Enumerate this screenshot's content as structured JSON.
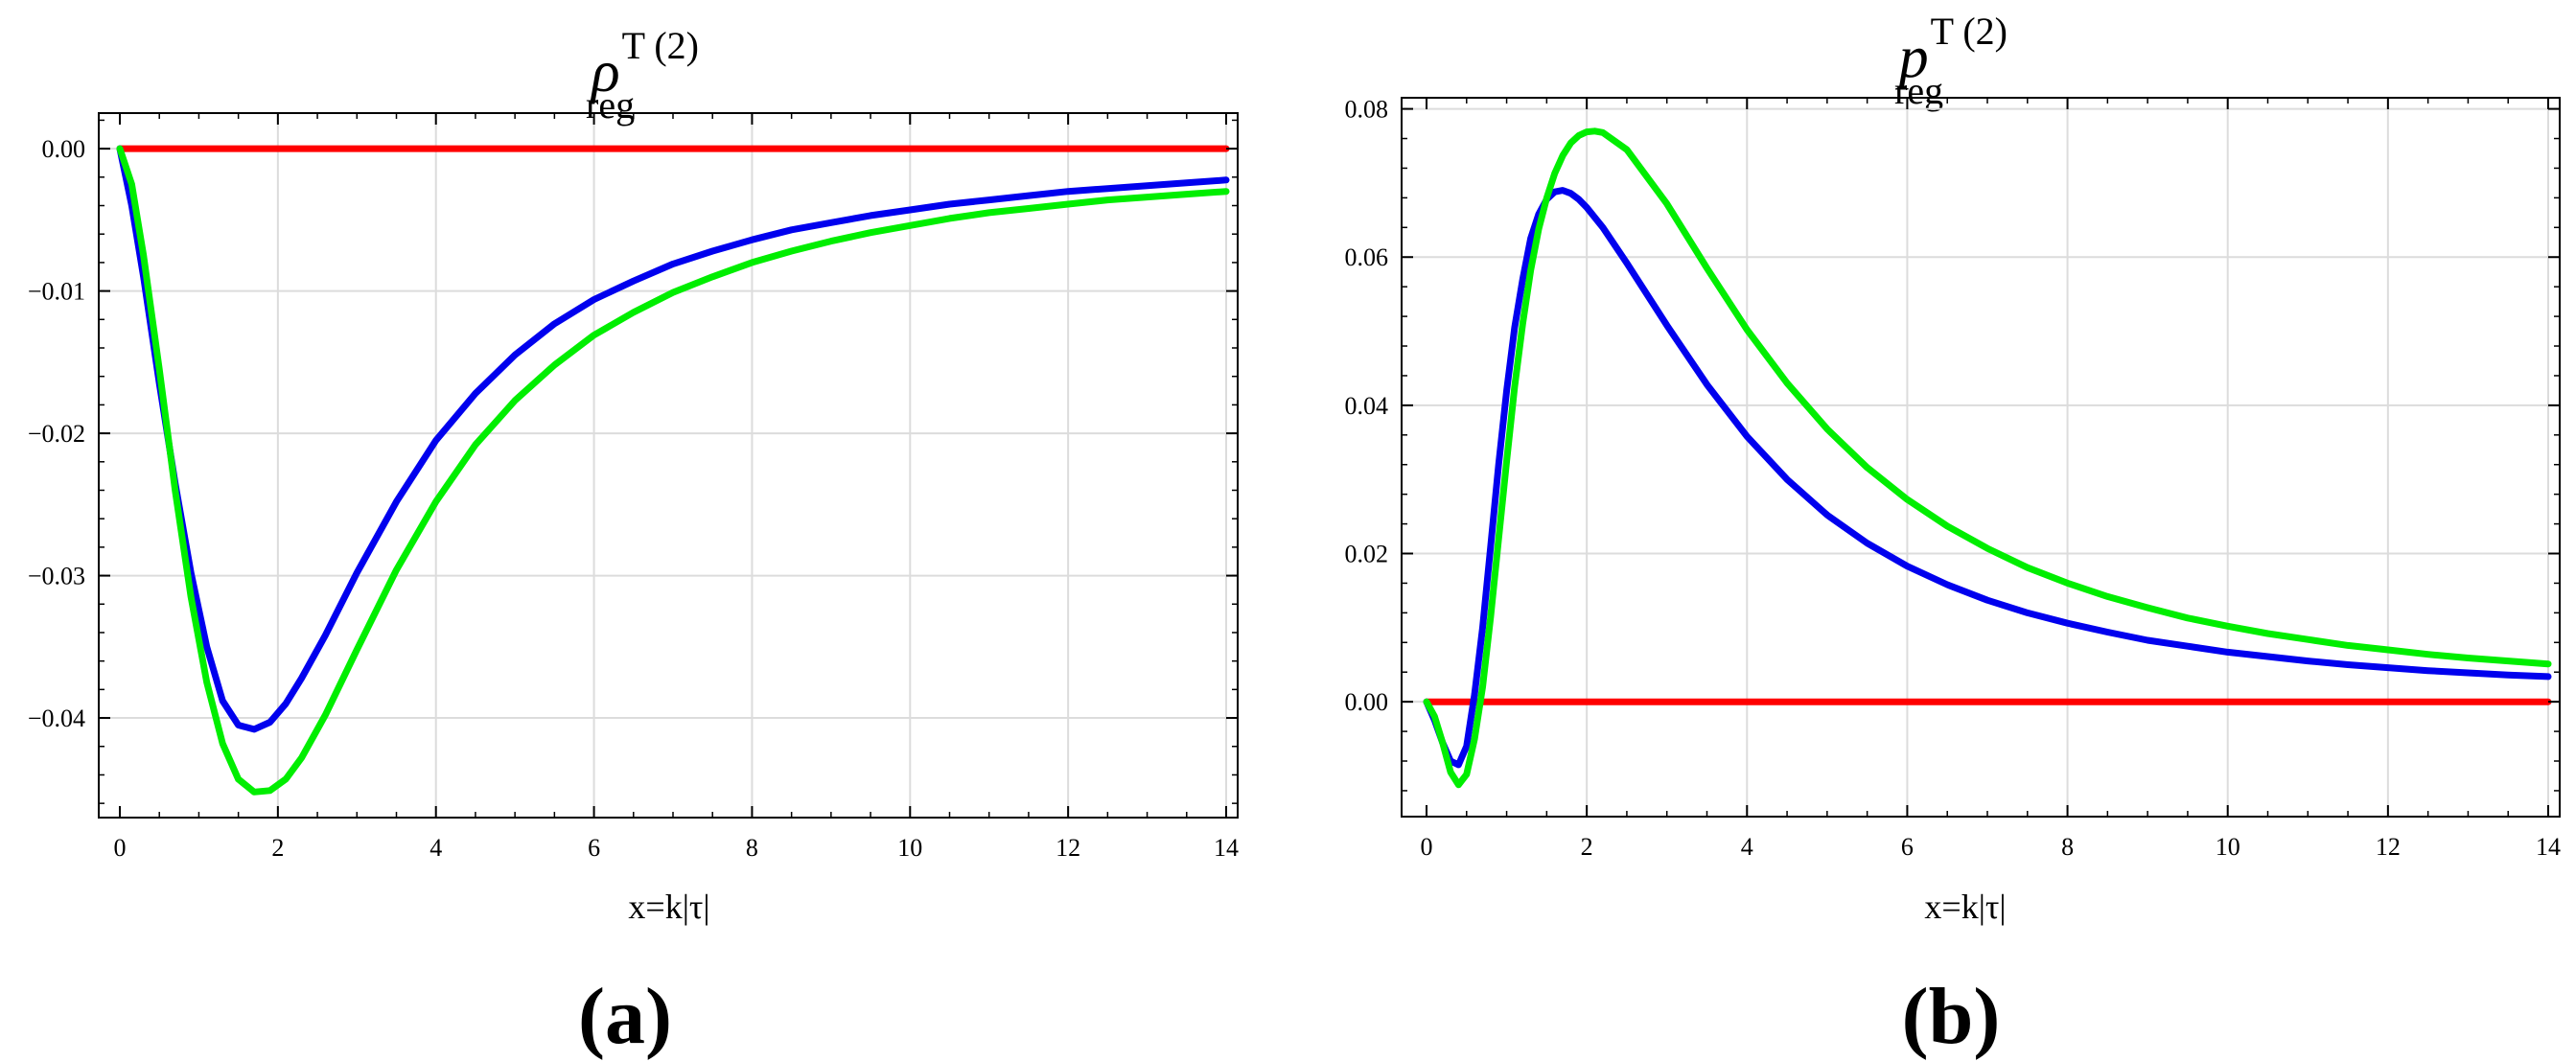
{
  "chart_data": [
    {
      "type": "line",
      "panel_label": "(a)",
      "title": {
        "symbol": "ρ",
        "sup": "T (2)",
        "sub": "reg"
      },
      "xlabel": "x=k|τ|",
      "ylabel": "",
      "xlim": [
        0,
        14
      ],
      "ylim": [
        -0.047,
        0.0025
      ],
      "grid": true,
      "legend": "none",
      "x_ticks": [
        "0",
        "2",
        "4",
        "6",
        "8",
        "10",
        "12",
        "14"
      ],
      "y_ticks": [
        "0.00",
        "−0.01",
        "−0.02",
        "−0.03",
        "−0.04"
      ],
      "series": [
        {
          "color": "#ff0000",
          "x": [
            0,
            14
          ],
          "y": [
            0,
            0
          ]
        },
        {
          "color": "#0000ee",
          "x": [
            0,
            0.15,
            0.3,
            0.5,
            0.7,
            0.9,
            1.1,
            1.3,
            1.5,
            1.7,
            1.9,
            2.1,
            2.3,
            2.6,
            3.0,
            3.5,
            4.0,
            4.5,
            5.0,
            5.5,
            6.0,
            6.5,
            7.0,
            7.5,
            8.0,
            8.5,
            9.0,
            9.5,
            10.0,
            10.5,
            11.0,
            11.5,
            12.0,
            12.5,
            13.0,
            13.5,
            14.0
          ],
          "y": [
            0,
            -0.004,
            -0.009,
            -0.0165,
            -0.0235,
            -0.0298,
            -0.035,
            -0.0388,
            -0.0405,
            -0.0408,
            -0.0403,
            -0.039,
            -0.0372,
            -0.0342,
            -0.0298,
            -0.0248,
            -0.0205,
            -0.0172,
            -0.0145,
            -0.0123,
            -0.0106,
            -0.0093,
            -0.0081,
            -0.0072,
            -0.0064,
            -0.0057,
            -0.0052,
            -0.0047,
            -0.0043,
            -0.0039,
            -0.0036,
            -0.0033,
            -0.003,
            -0.0028,
            -0.0026,
            -0.0024,
            -0.0022
          ]
        },
        {
          "color": "#00ee00",
          "x": [
            0,
            0.15,
            0.3,
            0.5,
            0.7,
            0.9,
            1.1,
            1.3,
            1.5,
            1.7,
            1.9,
            2.1,
            2.3,
            2.6,
            3.0,
            3.5,
            4.0,
            4.5,
            5.0,
            5.5,
            6.0,
            6.5,
            7.0,
            7.5,
            8.0,
            8.5,
            9.0,
            9.5,
            10.0,
            10.5,
            11.0,
            11.5,
            12.0,
            12.5,
            13.0,
            13.5,
            14.0
          ],
          "y": [
            0,
            -0.0025,
            -0.0075,
            -0.0155,
            -0.024,
            -0.0315,
            -0.0375,
            -0.0418,
            -0.0443,
            -0.0452,
            -0.0451,
            -0.0443,
            -0.0428,
            -0.0398,
            -0.0352,
            -0.0296,
            -0.0248,
            -0.0208,
            -0.0177,
            -0.0152,
            -0.0131,
            -0.0115,
            -0.0101,
            -0.009,
            -0.008,
            -0.0072,
            -0.0065,
            -0.0059,
            -0.0054,
            -0.0049,
            -0.0045,
            -0.0042,
            -0.0039,
            -0.0036,
            -0.0034,
            -0.0032,
            -0.003
          ]
        }
      ]
    },
    {
      "type": "line",
      "panel_label": "(b)",
      "title": {
        "symbol": "p",
        "sup": "T (2)",
        "sub": "reg"
      },
      "xlabel": "x=k|τ|",
      "ylabel": "",
      "xlim": [
        0,
        14
      ],
      "ylim": [
        -0.0155,
        0.0815
      ],
      "grid": true,
      "legend": "none",
      "x_ticks": [
        "0",
        "2",
        "4",
        "6",
        "8",
        "10",
        "12",
        "14"
      ],
      "y_ticks": [
        "0.00",
        "0.02",
        "0.04",
        "0.06",
        "0.08"
      ],
      "series": [
        {
          "color": "#ff0000",
          "x": [
            0,
            14
          ],
          "y": [
            0,
            0
          ]
        },
        {
          "color": "#0000ee",
          "x": [
            0,
            0.1,
            0.2,
            0.3,
            0.4,
            0.5,
            0.6,
            0.7,
            0.8,
            0.9,
            1.0,
            1.1,
            1.2,
            1.3,
            1.4,
            1.5,
            1.6,
            1.7,
            1.8,
            1.9,
            2.0,
            2.2,
            2.5,
            3.0,
            3.5,
            4.0,
            4.5,
            5.0,
            5.5,
            6.0,
            6.5,
            7.0,
            7.5,
            8.0,
            8.5,
            9.0,
            9.5,
            10.0,
            10.5,
            11.0,
            11.5,
            12.0,
            12.5,
            13.0,
            13.5,
            14.0
          ],
          "y": [
            0,
            -0.0025,
            -0.0055,
            -0.008,
            -0.0085,
            -0.006,
            0.001,
            0.01,
            0.021,
            0.032,
            0.042,
            0.0505,
            0.057,
            0.0625,
            0.0658,
            0.0678,
            0.0688,
            0.069,
            0.0686,
            0.0678,
            0.0667,
            0.064,
            0.0592,
            0.0508,
            0.0428,
            0.0358,
            0.03,
            0.0252,
            0.0214,
            0.0183,
            0.0158,
            0.0137,
            0.012,
            0.0106,
            0.0094,
            0.0083,
            0.0075,
            0.0067,
            0.0061,
            0.0055,
            0.005,
            0.0046,
            0.0042,
            0.0039,
            0.0036,
            0.0034
          ]
        },
        {
          "color": "#00ee00",
          "x": [
            0,
            0.1,
            0.2,
            0.3,
            0.4,
            0.5,
            0.6,
            0.7,
            0.8,
            0.9,
            1.0,
            1.1,
            1.2,
            1.3,
            1.4,
            1.5,
            1.6,
            1.7,
            1.8,
            1.9,
            2.0,
            2.1,
            2.2,
            2.5,
            3.0,
            3.5,
            4.0,
            4.5,
            5.0,
            5.5,
            6.0,
            6.5,
            7.0,
            7.5,
            8.0,
            8.5,
            9.0,
            9.5,
            10.0,
            10.5,
            11.0,
            11.5,
            12.0,
            12.5,
            13.0,
            13.5,
            14.0
          ],
          "y": [
            0,
            -0.002,
            -0.0055,
            -0.0095,
            -0.0112,
            -0.0098,
            -0.005,
            0.002,
            0.0115,
            0.022,
            0.0325,
            0.0425,
            0.051,
            0.0582,
            0.0638,
            0.068,
            0.0713,
            0.0737,
            0.0754,
            0.0764,
            0.0769,
            0.077,
            0.0768,
            0.0745,
            0.0672,
            0.0585,
            0.0502,
            0.043,
            0.0368,
            0.0316,
            0.0273,
            0.0237,
            0.0207,
            0.0181,
            0.016,
            0.0142,
            0.0127,
            0.0113,
            0.0102,
            0.0092,
            0.0084,
            0.0076,
            0.007,
            0.0064,
            0.0059,
            0.0055,
            0.0051
          ]
        }
      ]
    }
  ]
}
